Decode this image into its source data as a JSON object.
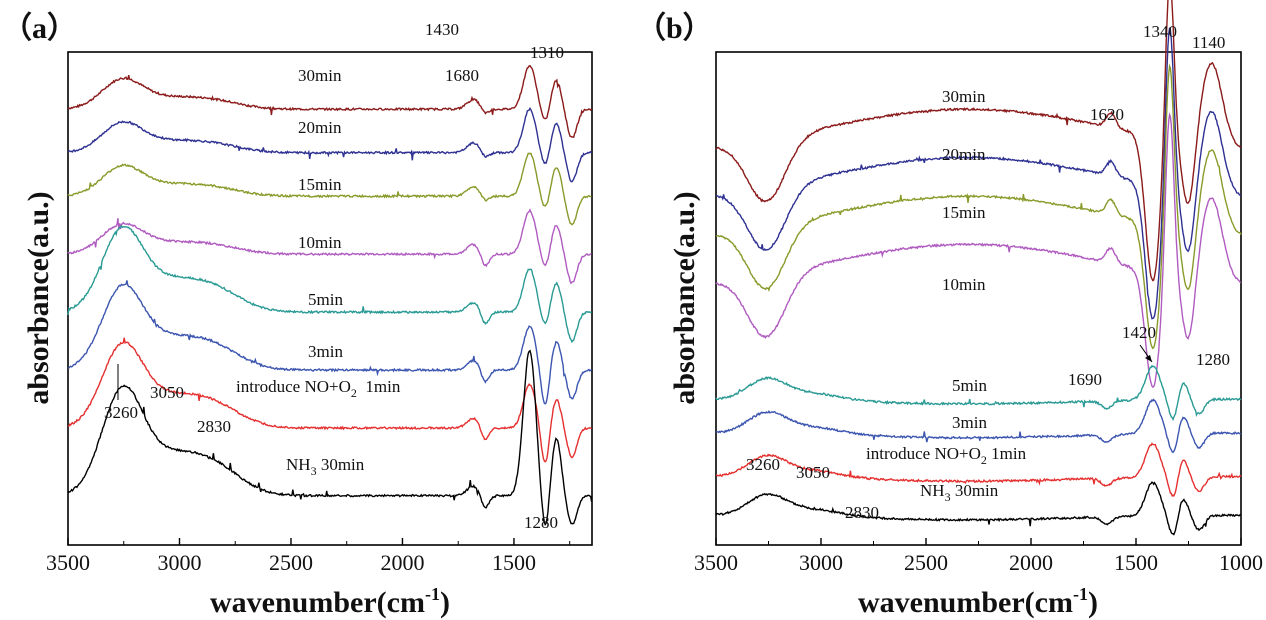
{
  "figure": {
    "xlabel_main": "wavenumber(cm",
    "xlabel_sup": "-1",
    "xlabel_end": ")",
    "ylabel": "absorbance(a.u.)"
  },
  "chart_data": [
    {
      "type": "line",
      "panel_label": "（a）",
      "xlabel": "wavenumber(cm-1)",
      "ylabel": "absorbance(a.u.)",
      "xlim": [
        3500,
        1150
      ],
      "x_reversed": true,
      "xticks": [
        3500,
        3000,
        2500,
        2000,
        1500
      ],
      "yticks_shown": false,
      "colors": [
        "#8B1A1A",
        "#2E3192",
        "#8A9A2A",
        "#B05BC0",
        "#2A9A94",
        "#3C55B0",
        "#E53030",
        "#000000"
      ],
      "series": [
        {
          "name": "30min",
          "label": "30min",
          "baseline": 0.84
        },
        {
          "name": "20min",
          "label": "20min",
          "baseline": 0.75
        },
        {
          "name": "15min",
          "label": "15min",
          "baseline": 0.66
        },
        {
          "name": "10min",
          "label": "10min",
          "baseline": 0.54
        },
        {
          "name": "5min",
          "label": "5min",
          "baseline": 0.42
        },
        {
          "name": "3min",
          "label": "3min",
          "baseline": 0.3
        },
        {
          "name": "introduce NO+O2 1min",
          "label_main": "introduce NO+O",
          "label_sub": "2",
          "label_end": "  1min",
          "baseline": 0.18
        },
        {
          "name": "NH3 30min",
          "label_main": "NH",
          "label_sub": "3",
          "label_end": " 30min",
          "baseline": 0.04
        }
      ],
      "annotations": [
        "1430",
        "1310",
        "1680",
        "3260",
        "3050",
        "2830",
        "1280"
      ]
    },
    {
      "type": "line",
      "panel_label": "（b）",
      "xlabel": "wavenumber(cm-1)",
      "ylabel": "absorbance(a.u.)",
      "xlim": [
        3500,
        1000
      ],
      "x_reversed": true,
      "xticks": [
        3500,
        3000,
        2500,
        2000,
        1500,
        1000
      ],
      "yticks_shown": false,
      "colors": [
        "#8B1A1A",
        "#2E3192",
        "#8A9A2A",
        "#B05BC0",
        "#2A9A94",
        "#3C55B0",
        "#E53030",
        "#000000"
      ],
      "series": [
        {
          "name": "30min",
          "label": "30min",
          "baseline": 0.74
        },
        {
          "name": "20min",
          "label": "20min",
          "baseline": 0.64
        },
        {
          "name": "15min",
          "label": "15min",
          "baseline": 0.56
        },
        {
          "name": "10min",
          "label": "10min",
          "baseline": 0.46
        },
        {
          "name": "5min",
          "label": "5min",
          "baseline": 0.24
        },
        {
          "name": "3min",
          "label": "3min",
          "baseline": 0.17
        },
        {
          "name": "introduce NO+O2 1min",
          "label_main": "introduce NO+O",
          "label_sub": "2",
          "label_end": " 1min",
          "baseline": 0.08
        },
        {
          "name": "NH3 30min",
          "label_main": "NH",
          "label_sub": "3",
          "label_end": " 30min",
          "baseline": 0.0
        }
      ],
      "annotations": [
        "1340",
        "1140",
        "1620",
        "1420",
        "1280",
        "1690",
        "3260",
        "3050",
        "2830"
      ]
    }
  ]
}
